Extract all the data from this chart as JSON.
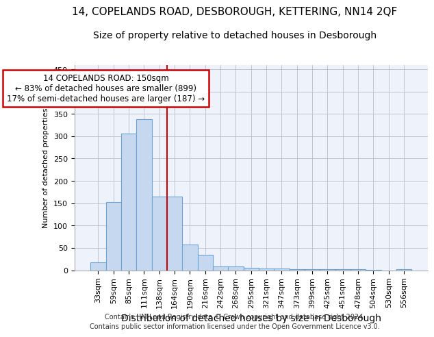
{
  "title": "14, COPELANDS ROAD, DESBOROUGH, KETTERING, NN14 2QF",
  "subtitle": "Size of property relative to detached houses in Desborough",
  "xlabel": "Distribution of detached houses by size in Desborough",
  "ylabel": "Number of detached properties",
  "categories": [
    "33sqm",
    "59sqm",
    "85sqm",
    "111sqm",
    "138sqm",
    "164sqm",
    "190sqm",
    "216sqm",
    "242sqm",
    "268sqm",
    "295sqm",
    "321sqm",
    "347sqm",
    "373sqm",
    "399sqm",
    "425sqm",
    "451sqm",
    "478sqm",
    "504sqm",
    "530sqm",
    "556sqm"
  ],
  "values": [
    18,
    152,
    306,
    338,
    165,
    165,
    57,
    35,
    9,
    8,
    5,
    4,
    4,
    3,
    3,
    2,
    2,
    3,
    1,
    0,
    3
  ],
  "bar_color": "#c5d8f0",
  "bar_edge_color": "#6aa3d4",
  "vline_x": 4.5,
  "vline_color": "#cc0000",
  "annotation_line1": "14 COPELANDS ROAD: 150sqm",
  "annotation_line2": "← 83% of detached houses are smaller (899)",
  "annotation_line3": "17% of semi-detached houses are larger (187) →",
  "annotation_box_color": "#ffffff",
  "annotation_box_edge": "#cc0000",
  "ylim": [
    0,
    460
  ],
  "yticks": [
    0,
    50,
    100,
    150,
    200,
    250,
    300,
    350,
    400,
    450
  ],
  "bg_color": "#eef2fb",
  "footer1": "Contains HM Land Registry data © Crown copyright and database right 2024.",
  "footer2": "Contains public sector information licensed under the Open Government Licence v3.0.",
  "title_fontsize": 11,
  "subtitle_fontsize": 10,
  "xlabel_fontsize": 10,
  "ylabel_fontsize": 8,
  "tick_fontsize": 8,
  "ann_fontsize": 8.5,
  "footer_fontsize": 7
}
